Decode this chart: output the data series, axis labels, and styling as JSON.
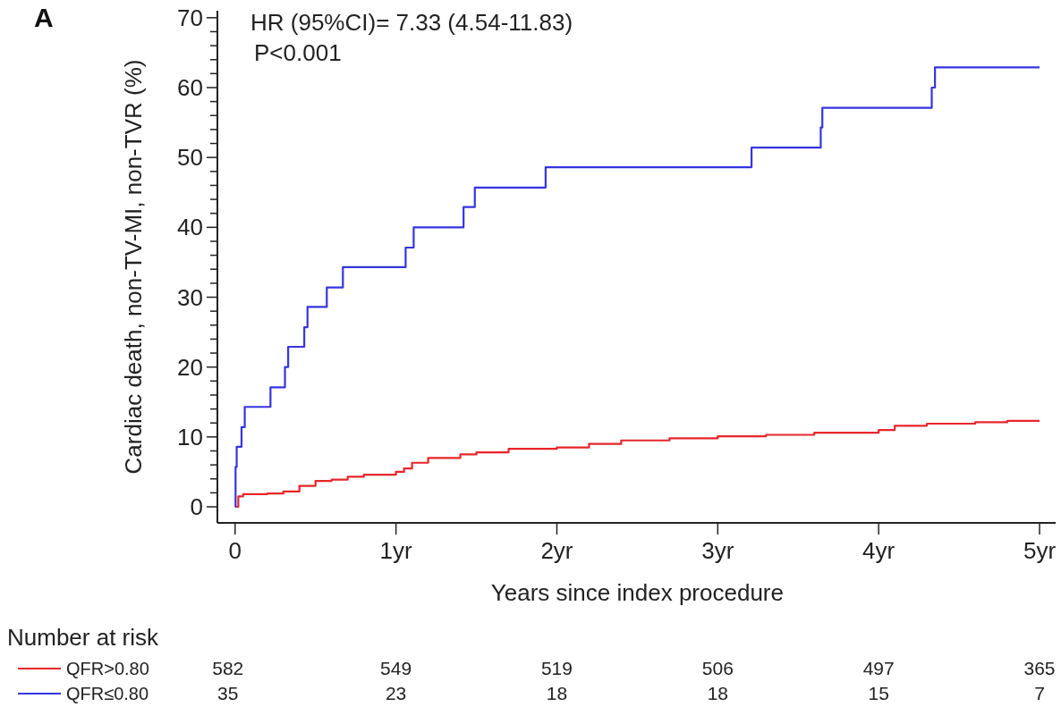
{
  "chart_data": {
    "type": "step",
    "xlabel": "Years since index procedure",
    "ylabel": "Cardiac death, non-TV-MI, non-TVR (%)",
    "xlim": [
      -0.11,
      5.1
    ],
    "ylim": [
      -2.3,
      71
    ],
    "xticks": [
      0,
      {
        "value": 1,
        "label": "1yr"
      },
      {
        "value": 2,
        "label": "2yr"
      },
      {
        "value": 3,
        "label": "3yr"
      },
      {
        "value": 4,
        "label": "4yr"
      },
      {
        "value": 5,
        "label": "5yr"
      }
    ],
    "yticks": [
      0,
      {
        "value": 2,
        "label": null
      },
      {
        "value": 4,
        "label": null
      },
      {
        "value": 6,
        "label": null
      },
      {
        "value": 8,
        "label": null
      },
      10,
      {
        "value": 12,
        "label": null
      },
      {
        "value": 14,
        "label": null
      },
      {
        "value": 16,
        "label": null
      },
      {
        "value": 18,
        "label": null
      },
      20,
      {
        "value": 22,
        "label": null
      },
      {
        "value": 24,
        "label": null
      },
      {
        "value": 26,
        "label": null
      },
      {
        "value": 28,
        "label": null
      },
      30,
      {
        "value": 32,
        "label": null
      },
      {
        "value": 34,
        "label": null
      },
      {
        "value": 36,
        "label": null
      },
      {
        "value": 38,
        "label": null
      },
      40,
      {
        "value": 42,
        "label": null
      },
      {
        "value": 44,
        "label": null
      },
      {
        "value": 46,
        "label": null
      },
      {
        "value": 48,
        "label": null
      },
      50,
      {
        "value": 52,
        "label": null
      },
      {
        "value": 54,
        "label": null
      },
      {
        "value": 56,
        "label": null
      },
      {
        "value": 58,
        "label": null
      },
      60,
      {
        "value": 62,
        "label": null
      },
      {
        "value": 64,
        "label": null
      },
      {
        "value": 66,
        "label": null
      },
      {
        "value": 68,
        "label": null
      },
      70
    ],
    "legend": "bottom left",
    "line_style": "solid",
    "grid": false,
    "series": [
      {
        "name": "QFR>0.80",
        "color": "#e8262a",
        "x": [
          0,
          0.02,
          0.05,
          0.2,
          0.3,
          0.4,
          0.5,
          0.6,
          0.7,
          0.8,
          1.0,
          1.05,
          1.1,
          1.2,
          1.4,
          1.5,
          1.7,
          2.0,
          2.2,
          2.4,
          2.7,
          3.0,
          3.3,
          3.6,
          4.0,
          4.1,
          4.3,
          4.6,
          4.8,
          5.0
        ],
        "values": [
          0,
          1.5,
          1.8,
          1.9,
          2.2,
          3,
          3.7,
          3.9,
          4.3,
          4.6,
          5,
          5.5,
          6.3,
          7,
          7.5,
          7.8,
          8.3,
          8.5,
          9.0,
          9.5,
          9.8,
          10.1,
          10.3,
          10.6,
          11.0,
          11.6,
          11.9,
          12.1,
          12.3,
          12.3
        ]
      },
      {
        "name": "QFR≤0.80",
        "color": "#3535e0",
        "x": [
          0,
          0.003,
          0.01,
          0.04,
          0.06,
          0.22,
          0.31,
          0.33,
          0.43,
          0.45,
          0.57,
          0.67,
          1.06,
          1.11,
          1.42,
          1.49,
          1.93,
          3.21,
          3.64,
          3.65,
          4.33,
          4.35,
          5.0
        ],
        "values": [
          0,
          5.7,
          8.6,
          11.4,
          14.3,
          17.1,
          20,
          22.9,
          25.7,
          28.6,
          31.4,
          34.3,
          37.1,
          40,
          42.9,
          45.7,
          48.6,
          51.4,
          54.3,
          57.1,
          60,
          62.9,
          62.9
        ]
      }
    ],
    "annotations": [
      "A",
      "HR (95%CI)= 7.33 (4.54-11.83)",
      "P<0.001",
      "Number at risk",
      "582",
      "549",
      "519",
      "506",
      "497",
      "365",
      "35",
      "23",
      "18",
      "18",
      "15",
      "7"
    ]
  }
}
